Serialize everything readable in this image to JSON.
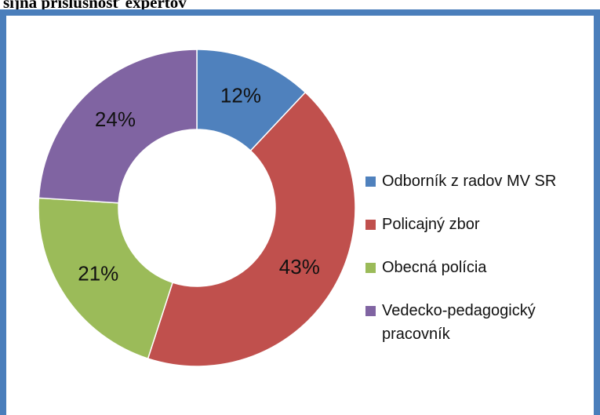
{
  "chart_data": {
    "type": "donut",
    "title": "sijná príslušnosť  expertov",
    "categories": [
      "Odborník z radov MV SR",
      "Policajný zbor",
      "Obecná polícia",
      "Vedecko-pedagogický pracovník"
    ],
    "values": [
      12,
      43,
      21,
      24
    ],
    "value_labels": [
      "12%",
      "43%",
      "21%",
      "24%"
    ],
    "colors": [
      "#4f81bd",
      "#c0504d",
      "#9bbb59",
      "#8064a2"
    ],
    "legend": "right"
  }
}
